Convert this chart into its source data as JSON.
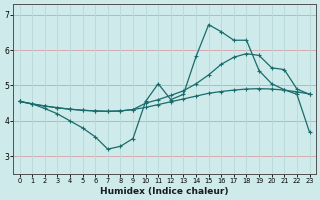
{
  "xlabel": "Humidex (Indice chaleur)",
  "bg_color": "#ceeaea",
  "grid_color_h": "#d4a0a8",
  "grid_color_v": "#b8d8d8",
  "line_color": "#1a6b6b",
  "xlim": [
    -0.5,
    23.5
  ],
  "ylim": [
    2.5,
    7.3
  ],
  "x_ticks": [
    0,
    1,
    2,
    3,
    4,
    5,
    6,
    7,
    8,
    9,
    10,
    11,
    12,
    13,
    14,
    15,
    16,
    17,
    18,
    19,
    20,
    21,
    22,
    23
  ],
  "y_ticks": [
    3,
    4,
    5,
    6,
    7
  ],
  "line1_x": [
    0,
    1,
    2,
    3,
    4,
    5,
    6,
    7,
    8,
    9,
    10,
    11,
    12,
    13,
    14,
    15,
    16,
    17,
    18,
    19,
    20,
    21,
    22,
    23
  ],
  "line1_y": [
    4.55,
    4.48,
    4.42,
    4.37,
    4.33,
    4.3,
    4.28,
    4.27,
    4.28,
    4.32,
    4.38,
    4.46,
    4.54,
    4.62,
    4.7,
    4.78,
    4.83,
    4.87,
    4.9,
    4.91,
    4.9,
    4.87,
    4.82,
    4.76
  ],
  "line2_x": [
    0,
    1,
    2,
    3,
    4,
    5,
    6,
    7,
    8,
    9,
    10,
    11,
    12,
    13,
    14,
    15,
    16,
    17,
    18,
    19,
    20,
    21,
    22,
    23
  ],
  "line2_y": [
    4.55,
    4.48,
    4.42,
    4.37,
    4.33,
    4.3,
    4.28,
    4.27,
    4.28,
    4.32,
    4.5,
    4.6,
    4.72,
    4.85,
    5.05,
    5.3,
    5.6,
    5.8,
    5.9,
    5.85,
    5.5,
    5.45,
    4.9,
    4.75
  ],
  "line3_x": [
    0,
    1,
    2,
    3,
    4,
    5,
    6,
    7,
    8,
    9,
    10,
    11,
    12,
    13,
    14,
    15,
    16,
    17,
    18,
    19,
    20,
    21,
    22,
    23
  ],
  "line3_y": [
    4.55,
    4.48,
    4.35,
    4.2,
    4.0,
    3.8,
    3.55,
    3.2,
    3.28,
    3.5,
    4.55,
    5.05,
    4.6,
    4.75,
    5.82,
    6.72,
    6.52,
    6.28,
    6.28,
    5.42,
    5.05,
    4.88,
    4.75,
    3.68
  ]
}
